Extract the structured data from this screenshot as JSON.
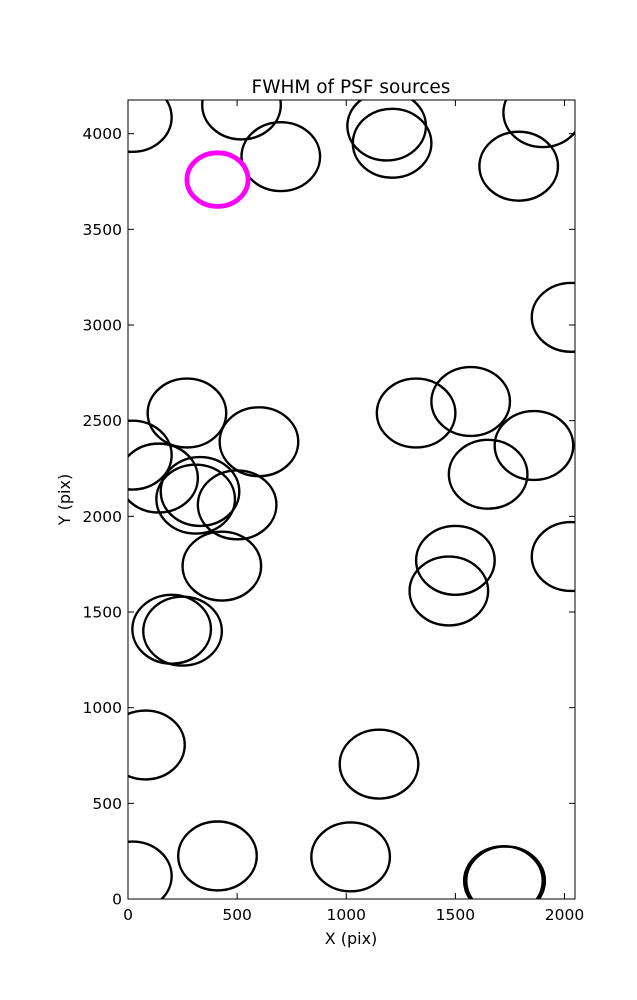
{
  "chart_data": {
    "type": "scatter",
    "title": "FWHM of PSF sources",
    "xlabel": "X (pix)",
    "ylabel": "Y (pix)",
    "xlim": [
      0,
      2048
    ],
    "ylim": [
      0,
      4176
    ],
    "x_ticks": [
      0,
      500,
      1000,
      1500,
      2000
    ],
    "y_ticks": [
      0,
      500,
      1000,
      1500,
      2000,
      2500,
      3000,
      3500,
      4000
    ],
    "grid": false,
    "marker": "open circle, radius = FWHM-scaled, in data units",
    "series": [
      {
        "color": "#000000",
        "points": [
          {
            "x": 20,
            "y": 4085,
            "r": 180
          },
          {
            "x": 520,
            "y": 4150,
            "r": 180
          },
          {
            "x": 700,
            "y": 3880,
            "r": 180
          },
          {
            "x": 1185,
            "y": 4040,
            "r": 180
          },
          {
            "x": 1210,
            "y": 3950,
            "r": 180
          },
          {
            "x": 1790,
            "y": 3830,
            "r": 180
          },
          {
            "x": 1900,
            "y": 4110,
            "r": 180
          },
          {
            "x": 2030,
            "y": 3040,
            "r": 180
          },
          {
            "x": 1320,
            "y": 2540,
            "r": 180
          },
          {
            "x": 1570,
            "y": 2600,
            "r": 180
          },
          {
            "x": 1860,
            "y": 2370,
            "r": 180
          },
          {
            "x": 1650,
            "y": 2220,
            "r": 180
          },
          {
            "x": 270,
            "y": 2540,
            "r": 180
          },
          {
            "x": 600,
            "y": 2390,
            "r": 180
          },
          {
            "x": 20,
            "y": 2320,
            "r": 180
          },
          {
            "x": 140,
            "y": 2200,
            "r": 180
          },
          {
            "x": 330,
            "y": 2130,
            "r": 180
          },
          {
            "x": 310,
            "y": 2090,
            "r": 180
          },
          {
            "x": 500,
            "y": 2060,
            "r": 180
          },
          {
            "x": 430,
            "y": 1740,
            "r": 180
          },
          {
            "x": 1500,
            "y": 1770,
            "r": 180
          },
          {
            "x": 1470,
            "y": 1610,
            "r": 180
          },
          {
            "x": 2030,
            "y": 1790,
            "r": 180
          },
          {
            "x": 200,
            "y": 1410,
            "r": 180
          },
          {
            "x": 250,
            "y": 1400,
            "r": 180
          },
          {
            "x": 80,
            "y": 805,
            "r": 180
          },
          {
            "x": 1150,
            "y": 705,
            "r": 180
          },
          {
            "x": 20,
            "y": 120,
            "r": 180
          },
          {
            "x": 410,
            "y": 225,
            "r": 180
          },
          {
            "x": 1020,
            "y": 220,
            "r": 180
          },
          {
            "x": 1720,
            "y": 95,
            "r": 180
          },
          {
            "x": 1730,
            "y": 95,
            "r": 180
          }
        ]
      },
      {
        "color": "#ff00ff",
        "points": [
          {
            "x": 410,
            "y": 3760,
            "r": 140
          }
        ]
      }
    ]
  }
}
